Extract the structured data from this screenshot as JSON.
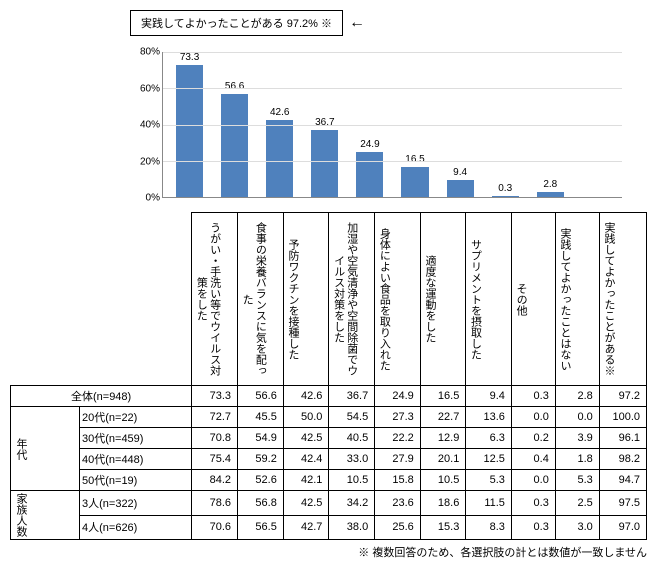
{
  "callout": "実践してよかったことがある 97.2% ※",
  "chart": {
    "ylim": [
      0,
      80
    ],
    "ytick_step": 20,
    "bar_color": "#4f81bd",
    "grid_color": "#dddddd",
    "axis_color": "#888888",
    "categories": [
      "うがい・手洗い等でウイルス対策をした",
      "食事の栄養バランスに気を配った",
      "予防ワクチンを接種した",
      "加湿や空気清浄や空間除菌でウイルス対策をした",
      "身体によい食品を取り入れた",
      "適度な運動をした",
      "サプリメントを摂取した",
      "その他",
      "実践してよかったことはない",
      "実践してよかったことがある※"
    ],
    "bar_values": [
      73.3,
      56.6,
      42.6,
      36.7,
      24.9,
      16.5,
      9.4,
      0.3,
      2.8,
      null
    ]
  },
  "table": {
    "row_groups": [
      {
        "group": null,
        "rows": [
          {
            "label": "全体(n=948)",
            "vals": [
              73.3,
              56.6,
              42.6,
              36.7,
              24.9,
              16.5,
              9.4,
              0.3,
              2.8,
              97.2
            ]
          }
        ]
      },
      {
        "group": "年代",
        "rows": [
          {
            "label": "20代(n=22)",
            "vals": [
              72.7,
              45.5,
              50.0,
              54.5,
              27.3,
              22.7,
              13.6,
              0.0,
              0.0,
              100.0
            ]
          },
          {
            "label": "30代(n=459)",
            "vals": [
              70.8,
              54.9,
              42.5,
              40.5,
              22.2,
              12.9,
              6.3,
              0.2,
              3.9,
              96.1
            ]
          },
          {
            "label": "40代(n=448)",
            "vals": [
              75.4,
              59.2,
              42.4,
              33.0,
              27.9,
              20.1,
              12.5,
              0.4,
              1.8,
              98.2
            ]
          },
          {
            "label": "50代(n=19)",
            "vals": [
              84.2,
              52.6,
              42.1,
              10.5,
              15.8,
              10.5,
              5.3,
              0.0,
              5.3,
              94.7
            ]
          }
        ]
      },
      {
        "group": "家族人数",
        "rows": [
          {
            "label": "3人(n=322)",
            "vals": [
              78.6,
              56.8,
              42.5,
              34.2,
              23.6,
              18.6,
              11.5,
              0.3,
              2.5,
              97.5
            ]
          },
          {
            "label": "4人(n=626)",
            "vals": [
              70.6,
              56.5,
              42.7,
              38.0,
              25.6,
              15.3,
              8.3,
              0.3,
              3.0,
              97.0
            ]
          }
        ]
      }
    ]
  },
  "footnote": "※ 複数回答のため、各選択肢の計とは数値が一致しません",
  "col_widths": {
    "group": 20,
    "label": 132,
    "data": 46
  }
}
